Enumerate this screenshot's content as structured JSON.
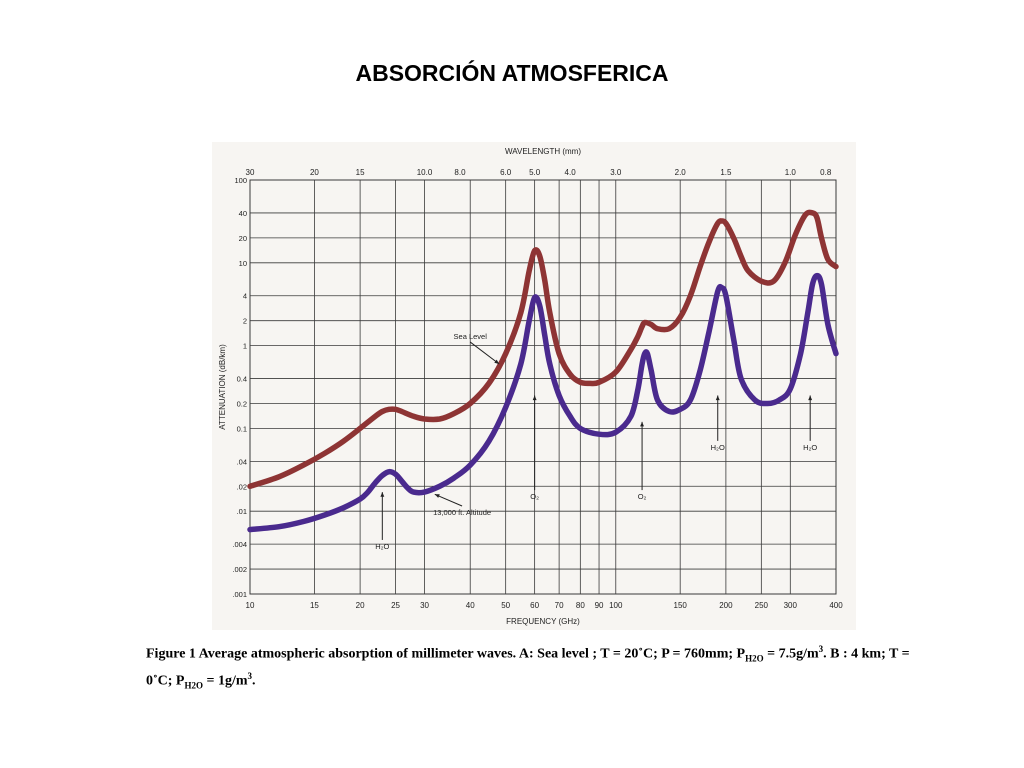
{
  "slide": {
    "title": "ABSORCIÓN ATMOSFERICA"
  },
  "caption": {
    "part1": "Figure 1 Average atmospheric absorption of millimeter waves. A: Sea level ; T = 20˚C; P = 760mm; P",
    "sub1": "H2O",
    "part2": " = 7.5g/m",
    "sup1": "3",
    "part3": ". B : 4 km; T = 0˚C; P",
    "sub2": "H2O",
    "part4": " = 1g/m",
    "sup2": "3",
    "part5": "."
  },
  "chart_data": {
    "type": "line",
    "title": "",
    "xlabel": "FREQUENCY (GHz)",
    "ylabel": "ATTENUATION (dB/km)",
    "top_axis_label": "WAVELENGTH (mm)",
    "x_scale": "log",
    "y_scale": "log",
    "xlim": [
      10,
      400
    ],
    "ylim": [
      0.001,
      100
    ],
    "grid": true,
    "x_ticks": [
      {
        "value": 10,
        "label": "10"
      },
      {
        "value": 15,
        "label": "15"
      },
      {
        "value": 20,
        "label": "20"
      },
      {
        "value": 25,
        "label": "25"
      },
      {
        "value": 30,
        "label": "30"
      },
      {
        "value": 40,
        "label": "40"
      },
      {
        "value": 50,
        "label": "50"
      },
      {
        "value": 60,
        "label": "60"
      },
      {
        "value": 70,
        "label": "70"
      },
      {
        "value": 80,
        "label": "80"
      },
      {
        "value": 90,
        "label": "90"
      },
      {
        "value": 100,
        "label": "100"
      },
      {
        "value": 150,
        "label": "150"
      },
      {
        "value": 200,
        "label": "200"
      },
      {
        "value": 250,
        "label": "250"
      },
      {
        "value": 300,
        "label": "300"
      },
      {
        "value": 400,
        "label": "400"
      }
    ],
    "top_ticks": [
      {
        "value": 30,
        "label": "30"
      },
      {
        "value": 20,
        "label": "20"
      },
      {
        "value": 15,
        "label": "15"
      },
      {
        "value": 10,
        "label": "10.0"
      },
      {
        "value": 8,
        "label": "8.0"
      },
      {
        "value": 6,
        "label": "6.0"
      },
      {
        "value": 5,
        "label": "5.0"
      },
      {
        "value": 4,
        "label": "4.0"
      },
      {
        "value": 3,
        "label": "3.0"
      },
      {
        "value": 2,
        "label": "2.0"
      },
      {
        "value": 1.5,
        "label": "1.5"
      },
      {
        "value": 1,
        "label": "1.0"
      },
      {
        "value": 0.8,
        "label": "0.8"
      }
    ],
    "y_ticks": [
      {
        "value": 100,
        "label": "100"
      },
      {
        "value": 40,
        "label": "40"
      },
      {
        "value": 20,
        "label": "20"
      },
      {
        "value": 10,
        "label": "10"
      },
      {
        "value": 4,
        "label": "4"
      },
      {
        "value": 2,
        "label": "2"
      },
      {
        "value": 1,
        "label": "1"
      },
      {
        "value": 0.4,
        "label": "0.4"
      },
      {
        "value": 0.2,
        "label": "0.2"
      },
      {
        "value": 0.1,
        "label": "0.1"
      },
      {
        "value": 0.04,
        "label": ".04"
      },
      {
        "value": 0.02,
        "label": ".02"
      },
      {
        "value": 0.01,
        "label": ".01"
      },
      {
        "value": 0.004,
        "label": ".004"
      },
      {
        "value": 0.002,
        "label": ".002"
      },
      {
        "value": 0.001,
        "label": ".001"
      }
    ],
    "series": [
      {
        "name": "Sea Level",
        "color": "#8e3434",
        "x": [
          10,
          12,
          14,
          16,
          18,
          20,
          22,
          23,
          24,
          25,
          26,
          28,
          30,
          33,
          36,
          40,
          45,
          50,
          55,
          58,
          60,
          62,
          64,
          66,
          70,
          75,
          80,
          85,
          90,
          100,
          110,
          115,
          118,
          120,
          125,
          130,
          140,
          150,
          160,
          170,
          180,
          190,
          195,
          200,
          210,
          220,
          230,
          250,
          270,
          290,
          310,
          330,
          345,
          355,
          365,
          380,
          400
        ],
        "y": [
          0.02,
          0.026,
          0.036,
          0.05,
          0.07,
          0.1,
          0.14,
          0.16,
          0.17,
          0.17,
          0.16,
          0.14,
          0.13,
          0.13,
          0.15,
          0.2,
          0.35,
          0.8,
          2.5,
          8,
          14,
          12,
          6,
          2.5,
          0.8,
          0.45,
          0.36,
          0.35,
          0.36,
          0.48,
          0.9,
          1.3,
          1.7,
          1.9,
          1.8,
          1.6,
          1.6,
          2.2,
          4,
          9,
          18,
          30,
          32,
          30,
          20,
          12,
          8,
          6,
          6,
          10,
          22,
          38,
          40,
          35,
          20,
          11,
          9
        ]
      },
      {
        "name": "13,000 ft. Altitude",
        "color": "#4a2a8e",
        "x": [
          10,
          12,
          14,
          16,
          18,
          20,
          21,
          22,
          23,
          24,
          25,
          26,
          27,
          28,
          30,
          33,
          36,
          40,
          45,
          50,
          55,
          58,
          60,
          62,
          64,
          66,
          70,
          75,
          80,
          90,
          100,
          110,
          115,
          118,
          120,
          122,
          125,
          130,
          140,
          150,
          160,
          170,
          180,
          190,
          195,
          200,
          210,
          220,
          240,
          260,
          280,
          300,
          320,
          335,
          345,
          355,
          365,
          380,
          400
        ],
        "y": [
          0.006,
          0.0065,
          0.0075,
          0.009,
          0.011,
          0.014,
          0.017,
          0.022,
          0.027,
          0.03,
          0.028,
          0.023,
          0.019,
          0.017,
          0.017,
          0.02,
          0.025,
          0.036,
          0.07,
          0.18,
          0.6,
          2,
          3.8,
          3,
          1.3,
          0.6,
          0.25,
          0.14,
          0.1,
          0.085,
          0.09,
          0.14,
          0.3,
          0.6,
          0.8,
          0.8,
          0.5,
          0.22,
          0.16,
          0.17,
          0.22,
          0.5,
          1.5,
          4.5,
          5,
          4,
          1.2,
          0.4,
          0.22,
          0.2,
          0.22,
          0.3,
          0.8,
          2.5,
          5.5,
          7,
          5.5,
          1.8,
          0.8
        ]
      }
    ],
    "annotations": [
      {
        "label": "Sea Level",
        "x": 40,
        "y": 1.2,
        "arrow_to_x": 48,
        "arrow_to_y": 0.6
      },
      {
        "label": "13,000 ft. Altitude",
        "x": 38,
        "y": 0.009,
        "arrow_to_x": 32,
        "arrow_to_y": 0.016
      },
      {
        "label": "H₂O",
        "x": 23,
        "y": 0.0035,
        "arrow_to_x": 23,
        "arrow_to_y": 0.017
      },
      {
        "label": "O₂",
        "x": 60,
        "y": 0.014,
        "arrow_to_x": 60,
        "arrow_to_y": 0.25
      },
      {
        "label": "O₂",
        "x": 118,
        "y": 0.014,
        "arrow_to_x": 118,
        "arrow_to_y": 0.12
      },
      {
        "label": "H₂O",
        "x": 190,
        "y": 0.055,
        "arrow_to_x": 190,
        "arrow_to_y": 0.25
      },
      {
        "label": "H₂O",
        "x": 340,
        "y": 0.055,
        "arrow_to_x": 340,
        "arrow_to_y": 0.25
      }
    ]
  }
}
